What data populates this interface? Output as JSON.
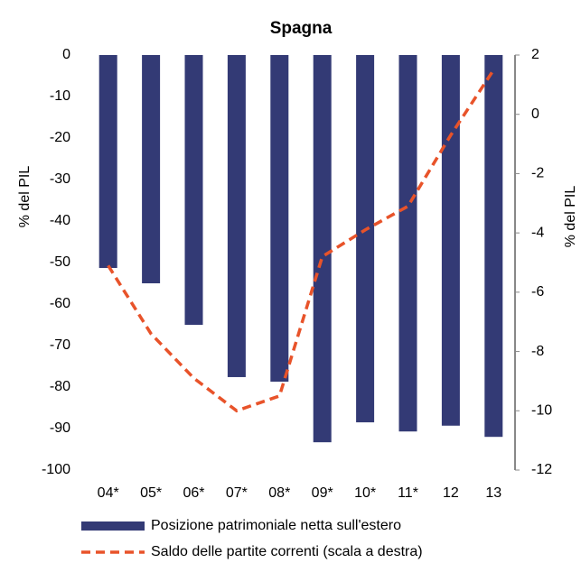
{
  "chart_data": {
    "type": "bar",
    "title": "Spagna",
    "categories": [
      "04*",
      "05*",
      "06*",
      "07*",
      "08*",
      "09*",
      "10*",
      "11*",
      "12",
      "13"
    ],
    "series": [
      {
        "name": "Posizione patrimoniale netta sull'estero",
        "type": "bar",
        "color": "#333a75",
        "values": [
          -51.3,
          -55,
          -65,
          -77.6,
          -78.7,
          -93.3,
          -88.5,
          -90.7,
          -89.3,
          -92
        ]
      },
      {
        "name": "Saldo delle partite correnti (scala a destra)",
        "type": "line",
        "axis": "y2",
        "color": "#e8532a",
        "values": [
          -5.1,
          -7.4,
          -8.9,
          -10.0,
          -9.5,
          -4.8,
          -3.9,
          -3.1,
          -0.7,
          1.5
        ]
      }
    ],
    "y_label": "% del PIL",
    "y2_label": "% del PIL",
    "ylim": [
      -100,
      0
    ],
    "yticks": [
      0,
      -10,
      -20,
      -30,
      -40,
      -50,
      -60,
      -70,
      -80,
      -90,
      -100
    ],
    "y2lim": [
      -12,
      2
    ],
    "y2ticks": [
      2,
      0,
      -2,
      -4,
      -6,
      -8,
      -10,
      -12
    ]
  }
}
